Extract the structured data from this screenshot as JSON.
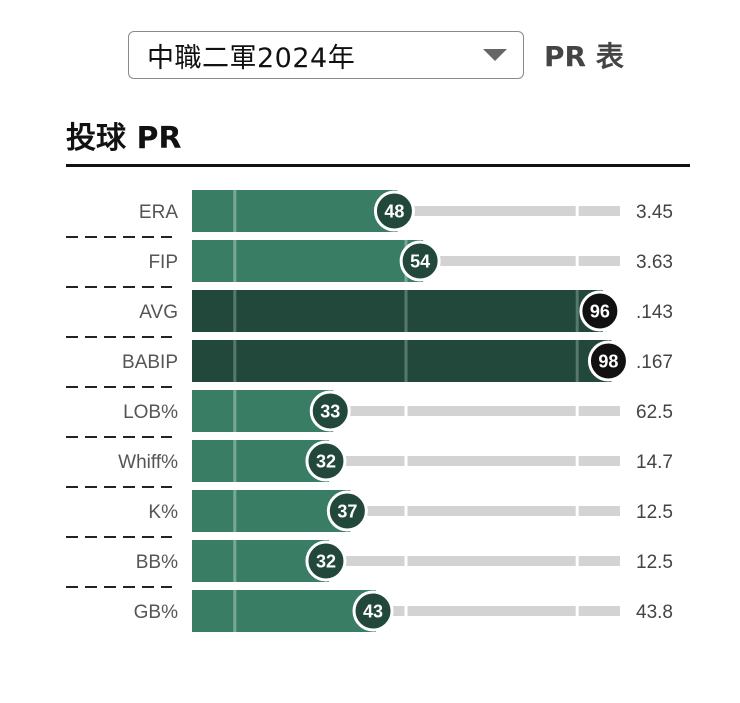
{
  "header": {
    "selected_option": "中職二軍2024年",
    "dropdown_icon": "chevron-down-icon",
    "suffix": "PR 表"
  },
  "section": {
    "title": "投球 PR"
  },
  "colors": {
    "bar_normal": "#3a7d65",
    "bar_high": "#22473b",
    "badge_normal": "#22473b",
    "badge_high": "#111111",
    "track": "#d3d3d3",
    "guide_line": "#7aa896"
  },
  "chart_data": {
    "type": "bar",
    "orientation": "horizontal",
    "categories": [
      "ERA",
      "FIP",
      "AVG",
      "BABIP",
      "LOB%",
      "Whiff%",
      "K%",
      "BB%",
      "GB%"
    ],
    "values": [
      48,
      54,
      96,
      98,
      33,
      32,
      37,
      32,
      43
    ],
    "stat_values": [
      "3.45",
      "3.63",
      ".143",
      ".167",
      "62.5",
      "14.7",
      "12.5",
      "12.5",
      "43.8"
    ],
    "xlim": [
      0,
      100
    ],
    "reference_lines": [
      10,
      50,
      90
    ],
    "high_threshold": 90,
    "title": "投球 PR"
  }
}
